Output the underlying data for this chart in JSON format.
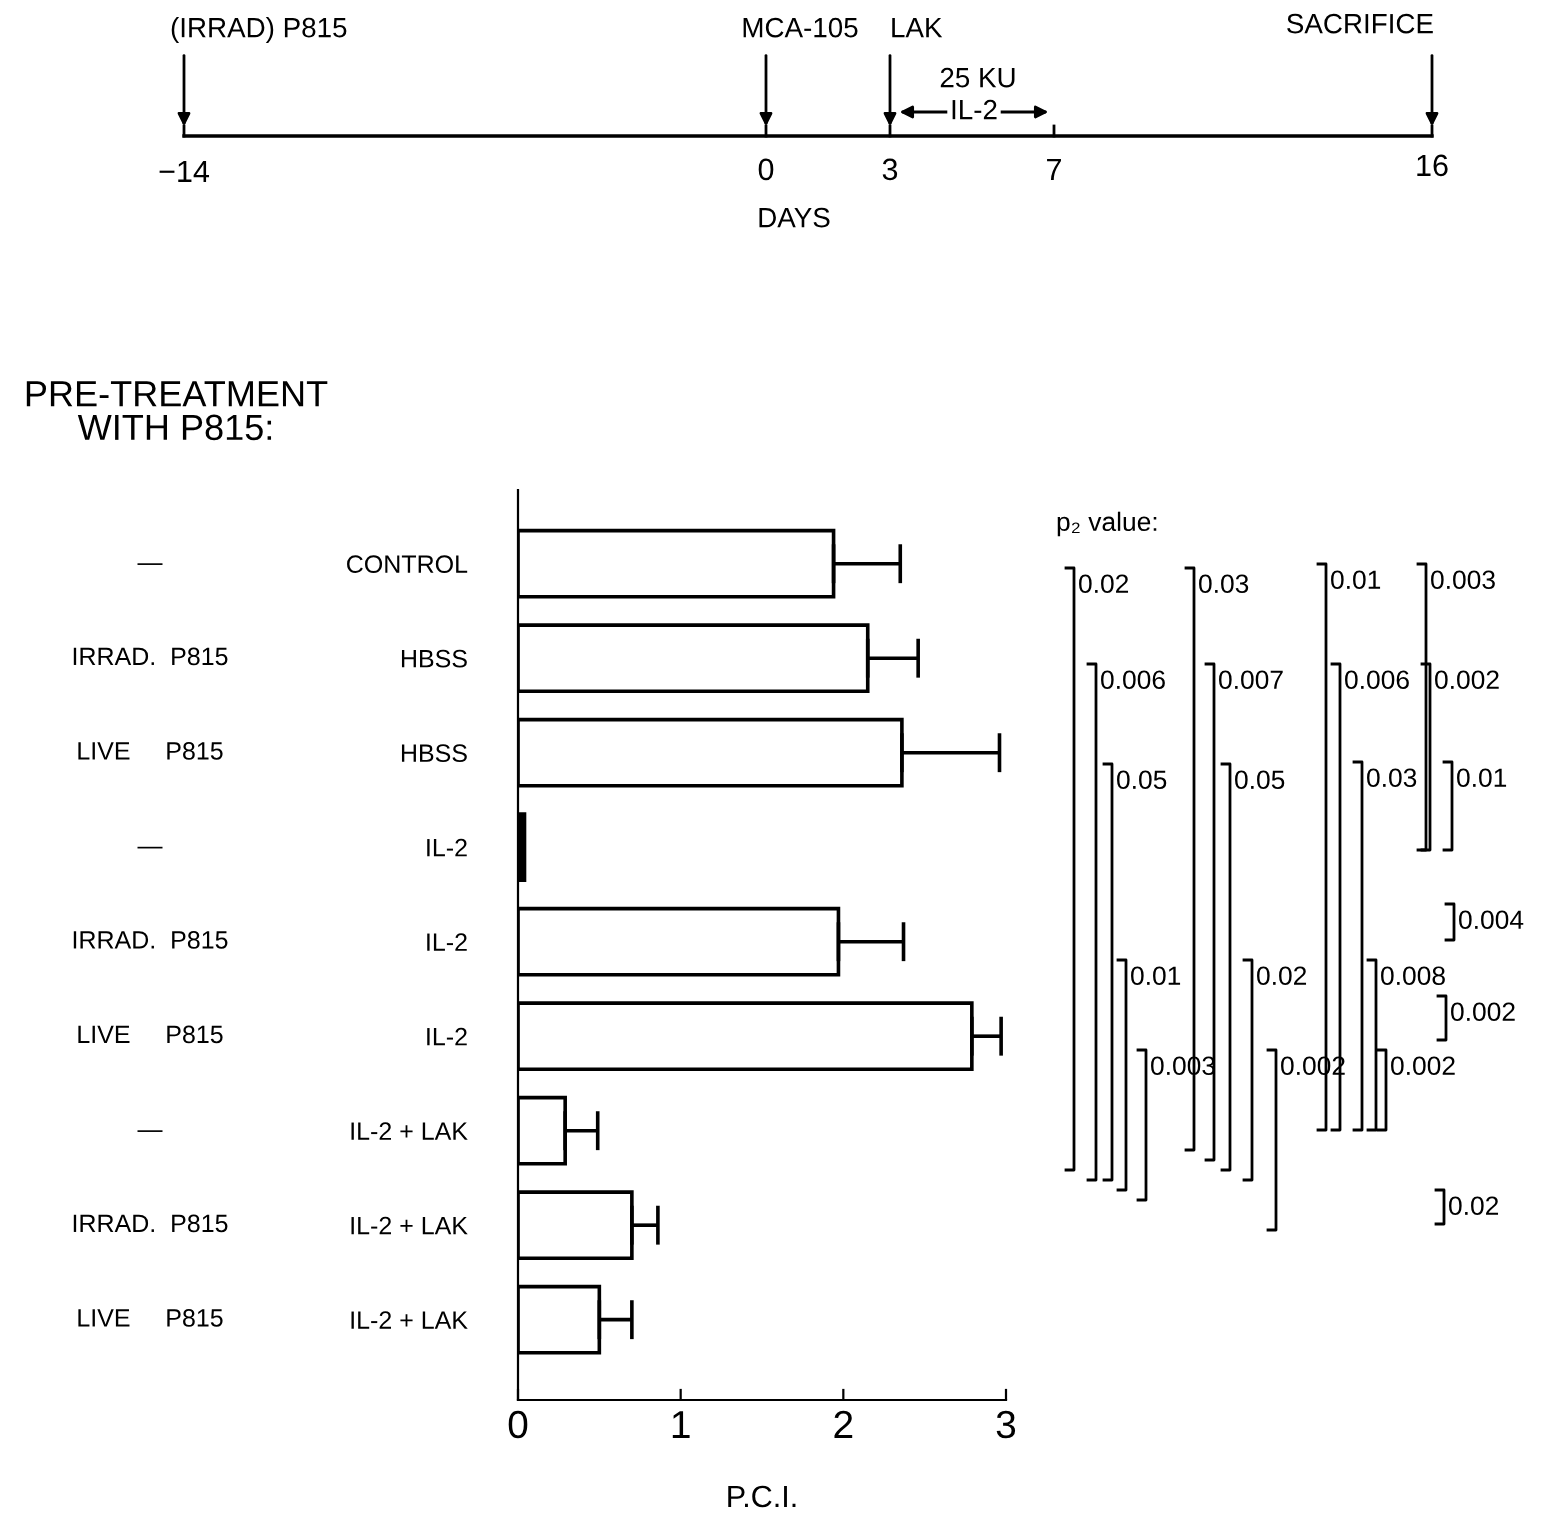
{
  "chart_data": {
    "type": "bar",
    "orientation": "horizontal",
    "title": "PRE-TREATMENT\nWITH P815:",
    "xlabel": "P.C.I.",
    "categories": [
      "CONTROL",
      "HBSS",
      "HBSS",
      "IL-2",
      "IL-2",
      "IL-2",
      "IL-2 + LAK",
      "IL-2 + LAK",
      "IL-2 + LAK"
    ],
    "y2_categories": [
      "—",
      "IRRAD.  P815",
      "LIVE     P815",
      "—",
      "IRRAD.  P815",
      "LIVE     P815",
      "—",
      "IRRAD.  P815",
      "LIVE     P815"
    ],
    "values": [
      1.94,
      2.15,
      2.36,
      0.04,
      1.97,
      2.79,
      0.29,
      0.7,
      0.5
    ],
    "errors": [
      [
        1.94,
        2.35
      ],
      [
        2.15,
        2.46
      ],
      [
        2.36,
        2.96
      ],
      null,
      [
        1.97,
        2.37
      ],
      [
        2.79,
        2.97
      ],
      [
        0.29,
        0.49
      ],
      [
        0.7,
        0.86
      ],
      [
        0.5,
        0.7
      ]
    ],
    "colors": [
      "#ffffff",
      "#ffffff",
      "#ffffff",
      "#000000",
      "#ffffff",
      "#ffffff",
      "#ffffff",
      "#ffffff",
      "#ffffff"
    ],
    "xlim": [
      0,
      3
    ],
    "xticks": [
      0,
      1,
      2,
      3
    ],
    "grid": false,
    "annotations": [
      "(IRRAD) P815",
      "MCA-105",
      "LAK",
      "SACRIFICE",
      "25 KU",
      "IL-2",
      "−14",
      "0",
      "3",
      "7",
      "16",
      "DAYS",
      "p₂ value:",
      "0.02",
      "0.03",
      "0.01",
      "0.003",
      "0.006",
      "0.007",
      "0.006",
      "0.002",
      "0.05",
      "0.05",
      "0.03",
      "0.01",
      "0.004",
      "0.01",
      "0.02",
      "0.008",
      "0.002",
      "0.003",
      "0.002",
      "0.002",
      "0.02"
    ]
  }
}
